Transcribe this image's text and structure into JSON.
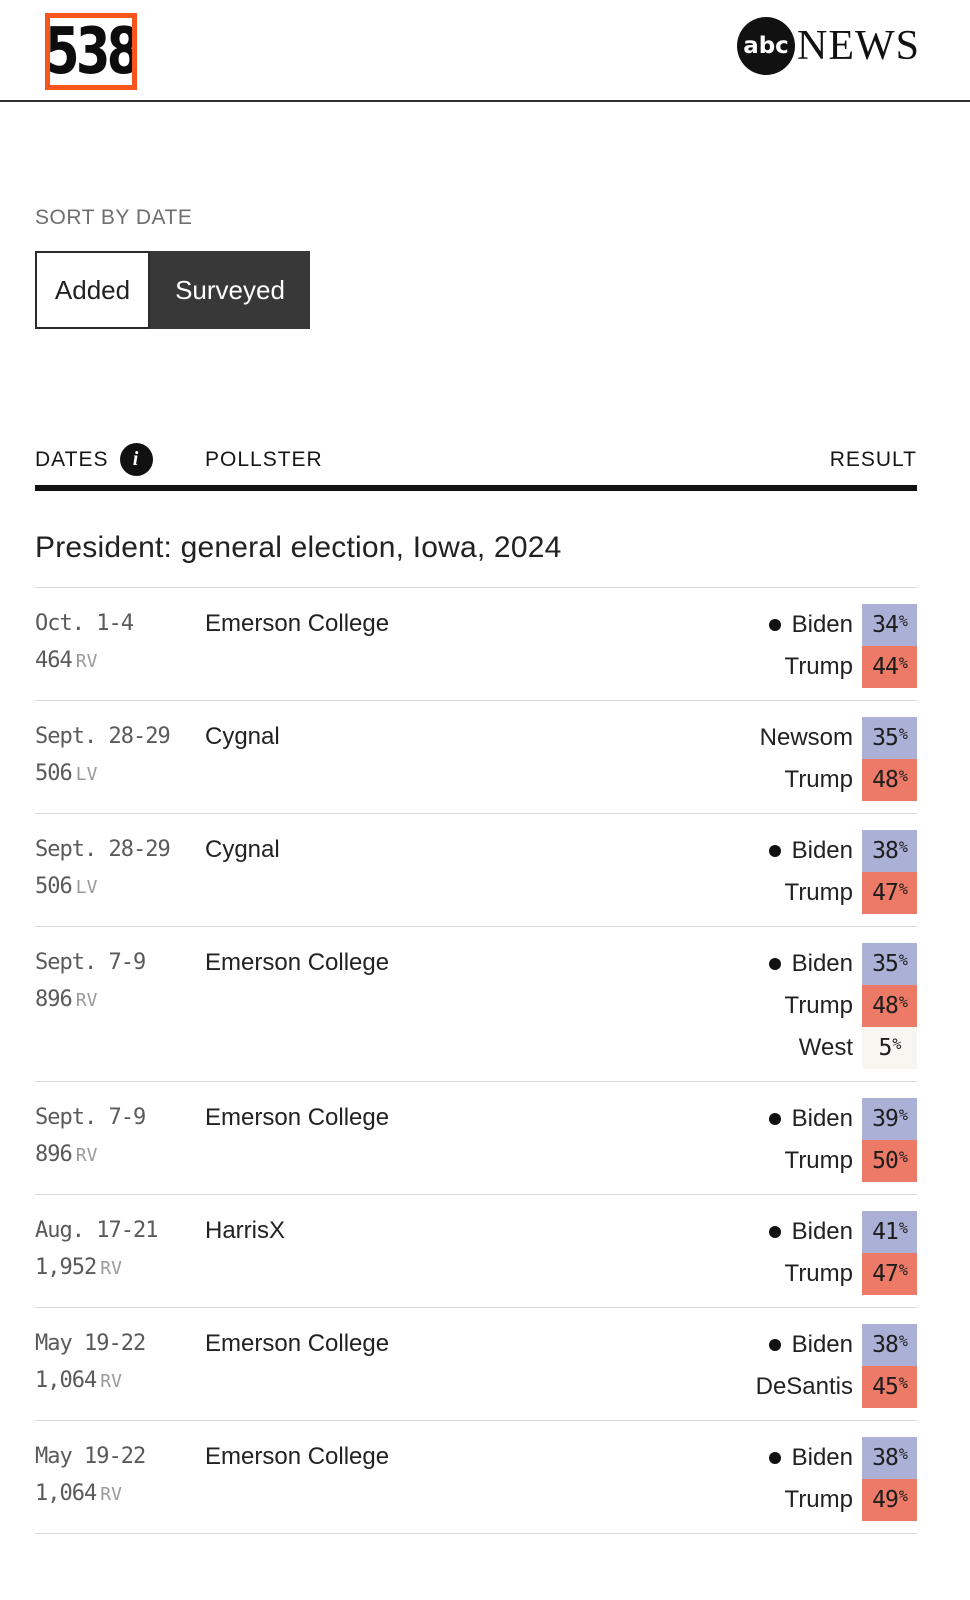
{
  "brand": {
    "logo_text": "538",
    "abc_circle_text": "abc",
    "abc_news_text": "NEWS"
  },
  "sort": {
    "label": "SORT BY DATE",
    "options": [
      {
        "label": "Added",
        "selected": false
      },
      {
        "label": "Surveyed",
        "selected": true
      }
    ]
  },
  "table": {
    "columns": {
      "dates": "DATES",
      "pollster": "POLLSTER",
      "result": "RESULT"
    },
    "info_icon_glyph": "i",
    "section_title": "President: general election, Iowa, 2024",
    "pct_sign": "%",
    "rows": [
      {
        "date_range": "Oct. 1-4",
        "sample_value": "464",
        "sample_suffix": "RV",
        "pollster": "Emerson College",
        "results": [
          {
            "name": "Biden",
            "pct": "34",
            "party": "dem",
            "dot": true
          },
          {
            "name": "Trump",
            "pct": "44",
            "party": "rep",
            "dot": false
          }
        ]
      },
      {
        "date_range": "Sept. 28-29",
        "sample_value": "506",
        "sample_suffix": "LV",
        "pollster": "Cygnal",
        "results": [
          {
            "name": "Newsom",
            "pct": "35",
            "party": "dem",
            "dot": false
          },
          {
            "name": "Trump",
            "pct": "48",
            "party": "rep",
            "dot": false
          }
        ]
      },
      {
        "date_range": "Sept. 28-29",
        "sample_value": "506",
        "sample_suffix": "LV",
        "pollster": "Cygnal",
        "results": [
          {
            "name": "Biden",
            "pct": "38",
            "party": "dem",
            "dot": true
          },
          {
            "name": "Trump",
            "pct": "47",
            "party": "rep",
            "dot": false
          }
        ]
      },
      {
        "date_range": "Sept. 7-9",
        "sample_value": "896",
        "sample_suffix": "RV",
        "pollster": "Emerson College",
        "results": [
          {
            "name": "Biden",
            "pct": "35",
            "party": "dem",
            "dot": true
          },
          {
            "name": "Trump",
            "pct": "48",
            "party": "rep",
            "dot": false
          },
          {
            "name": "West",
            "pct": "5",
            "party": "other",
            "dot": false
          }
        ]
      },
      {
        "date_range": "Sept. 7-9",
        "sample_value": "896",
        "sample_suffix": "RV",
        "pollster": "Emerson College",
        "results": [
          {
            "name": "Biden",
            "pct": "39",
            "party": "dem",
            "dot": true
          },
          {
            "name": "Trump",
            "pct": "50",
            "party": "rep",
            "dot": false
          }
        ]
      },
      {
        "date_range": "Aug. 17-21",
        "sample_value": "1,952",
        "sample_suffix": "RV",
        "pollster": "HarrisX",
        "results": [
          {
            "name": "Biden",
            "pct": "41",
            "party": "dem",
            "dot": true
          },
          {
            "name": "Trump",
            "pct": "47",
            "party": "rep",
            "dot": false
          }
        ]
      },
      {
        "date_range": "May 19-22",
        "sample_value": "1,064",
        "sample_suffix": "RV",
        "pollster": "Emerson College",
        "results": [
          {
            "name": "Biden",
            "pct": "38",
            "party": "dem",
            "dot": true
          },
          {
            "name": "DeSantis",
            "pct": "45",
            "party": "rep",
            "dot": false
          }
        ]
      },
      {
        "date_range": "May 19-22",
        "sample_value": "1,064",
        "sample_suffix": "RV",
        "pollster": "Emerson College",
        "results": [
          {
            "name": "Biden",
            "pct": "38",
            "party": "dem",
            "dot": true
          },
          {
            "name": "Trump",
            "pct": "49",
            "party": "rep",
            "dot": false
          }
        ]
      }
    ]
  },
  "colors": {
    "dem_chip": "#abb0d6",
    "rep_chip": "#ec7a67",
    "other_chip": "#f7f6f0",
    "accent_orange": "#f8551c",
    "toggle_dark": "#383838"
  }
}
